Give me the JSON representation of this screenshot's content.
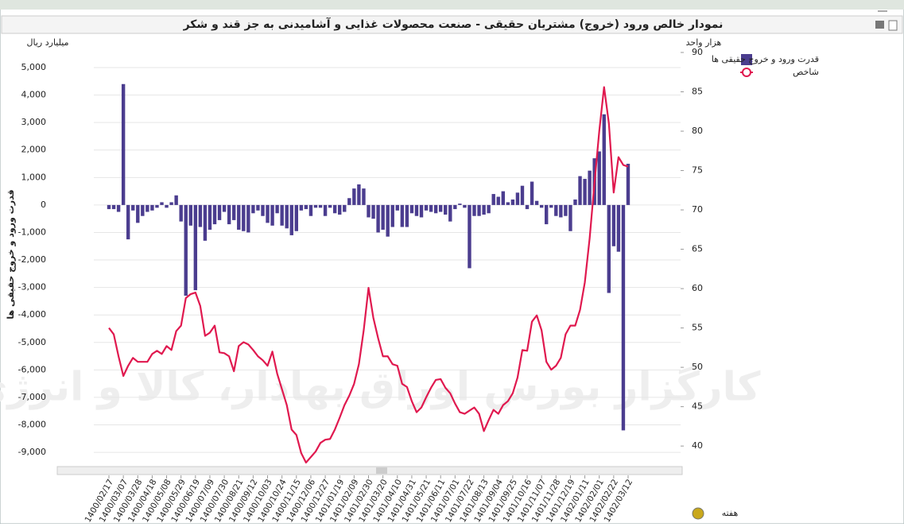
{
  "chart_data": {
    "type": "bar",
    "title": "نمودار خالص ورود (خروج) مشتریان حقیقی - صنعت محصولات غذایی و آشامیدنی به جز قند و شکر",
    "ylabel": "قدرت ورود و خروج حقیقی ها",
    "yunit": "میلیارد ریال",
    "y2unit": "هزار واحد",
    "xlabel": "هفته",
    "watermark": "کارگزار بورس اوراق بهادار، کالا و انرژی",
    "categories": [
      "1400/02/17",
      null,
      null,
      "1400/03/07",
      null,
      null,
      "1400/03/28",
      null,
      null,
      "1400/04/18",
      null,
      null,
      "1400/05/08",
      null,
      null,
      "1400/05/29",
      null,
      null,
      "1400/06/19",
      null,
      null,
      "1400/07/09",
      null,
      null,
      "1400/07/30",
      null,
      null,
      "1400/08/21",
      null,
      null,
      "1400/09/12",
      null,
      null,
      "1400/10/03",
      null,
      null,
      "1400/10/24",
      null,
      null,
      "1400/11/15",
      null,
      null,
      "1400/12/06",
      null,
      null,
      "1400/12/27",
      null,
      null,
      "1401/01/19",
      null,
      null,
      "1401/02/09",
      null,
      null,
      "1401/02/30",
      null,
      null,
      "1401/03/20",
      null,
      null,
      "1401/04/10",
      null,
      null,
      "1401/04/31",
      null,
      null,
      "1401/05/21",
      null,
      null,
      "1401/06/11",
      null,
      null,
      "1401/07/01",
      null,
      null,
      "1401/07/22",
      null,
      null,
      "1401/08/13",
      null,
      null,
      "1401/09/04",
      null,
      null,
      "1401/09/25",
      null,
      null,
      "1401/10/16",
      null,
      null,
      "1401/11/07",
      null,
      null,
      "1401/11/28",
      null,
      null,
      "1401/12/19",
      null,
      null,
      "1402/01/11",
      null,
      null,
      "1402/02/01",
      null,
      null,
      "1402/02/22",
      null,
      null,
      "1402/03/12"
    ],
    "series": [
      {
        "name": "قدرت ورود و خروج حقیقی ها",
        "type": "bar",
        "color": "#4b3d8f",
        "values": [
          -150,
          -150,
          -250,
          4400,
          -1250,
          -200,
          -650,
          -400,
          -250,
          -200,
          -100,
          100,
          -100,
          100,
          350,
          -600,
          -3300,
          -750,
          -3100,
          -800,
          -1300,
          -900,
          -700,
          -550,
          -250,
          -700,
          -550,
          -900,
          -950,
          -1000,
          -300,
          -200,
          -400,
          -650,
          -750,
          -300,
          -750,
          -850,
          -1100,
          -950,
          -200,
          -150,
          -400,
          -100,
          -100,
          -400,
          -100,
          -300,
          -350,
          -250,
          250,
          600,
          750,
          600,
          -450,
          -500,
          -1000,
          -900,
          -1150,
          -800,
          -200,
          -800,
          -800,
          -300,
          -400,
          -450,
          -200,
          -250,
          -300,
          -250,
          -350,
          -600,
          -150,
          50,
          -100,
          -2300,
          -400,
          -400,
          -350,
          -300,
          400,
          300,
          500,
          100,
          200,
          450,
          700,
          -150,
          850,
          150,
          -100,
          -700,
          -100,
          -400,
          -450,
          -400,
          -950,
          200,
          1050,
          950,
          1250,
          1700,
          1950,
          3300,
          -3200,
          -1500,
          -1700,
          -8200,
          1500
        ]
      },
      {
        "name": "شاخص",
        "type": "line",
        "axis": "y2",
        "color": "#e0194f",
        "values": [
          55.0,
          54.2,
          51.4,
          48.9,
          50.2,
          51.2,
          50.7,
          50.7,
          50.7,
          51.7,
          52.1,
          51.7,
          52.7,
          52.2,
          54.6,
          55.3,
          58.8,
          59.3,
          59.5,
          57.8,
          54.0,
          54.4,
          55.3,
          51.9,
          51.8,
          51.4,
          49.5,
          52.7,
          53.2,
          52.9,
          52.2,
          51.4,
          50.9,
          50.2,
          52.0,
          49.2,
          47.2,
          45.2,
          42.1,
          41.4,
          39.1,
          37.9,
          38.6,
          39.3,
          40.4,
          40.8,
          40.9,
          42.1,
          43.6,
          45.2,
          46.4,
          47.9,
          50.4,
          54.7,
          60.1,
          56.3,
          53.7,
          51.4,
          51.4,
          50.4,
          50.2,
          47.9,
          47.5,
          45.7,
          44.3,
          44.9,
          46.2,
          47.4,
          48.4,
          48.5,
          47.4,
          46.7,
          45.4,
          44.3,
          44.1,
          44.5,
          44.9,
          44.1,
          41.9,
          43.3,
          44.6,
          44.1,
          45.2,
          45.7,
          46.7,
          48.7,
          52.2,
          52.1,
          55.8,
          56.6,
          54.7,
          50.7,
          49.7,
          50.2,
          51.2,
          54.2,
          55.3,
          55.3,
          57.3,
          60.8,
          66.4,
          73.4,
          80.0,
          85.6,
          81.0,
          72.2,
          76.7,
          75.7,
          75.5
        ]
      }
    ],
    "ylim": [
      -9200,
      5550
    ],
    "yticks": [
      {
        "value": 5000,
        "label": "5,000"
      },
      {
        "value": 4000,
        "label": "4,000"
      },
      {
        "value": 3000,
        "label": "3,000"
      },
      {
        "value": 2000,
        "label": "2,000"
      },
      {
        "value": 1000,
        "label": "1,000"
      },
      0,
      {
        "value": -1000,
        "label": "-1,000"
      },
      {
        "value": -2000,
        "label": "-2,000"
      },
      {
        "value": -3000,
        "label": "-3,000"
      },
      {
        "value": -4000,
        "label": "-4,000"
      },
      {
        "value": -5000,
        "label": "-5,000"
      },
      {
        "value": -6000,
        "label": "-6,000"
      },
      {
        "value": -7000,
        "label": "-7,000"
      },
      {
        "value": -8000,
        "label": "-8,000"
      },
      {
        "value": -9000,
        "label": "-9,000"
      }
    ],
    "y2lim": [
      38.5,
      90
    ],
    "y2ticks": [
      40,
      45,
      50,
      55,
      60,
      65,
      70,
      75,
      80,
      85,
      90
    ],
    "grid": true
  }
}
